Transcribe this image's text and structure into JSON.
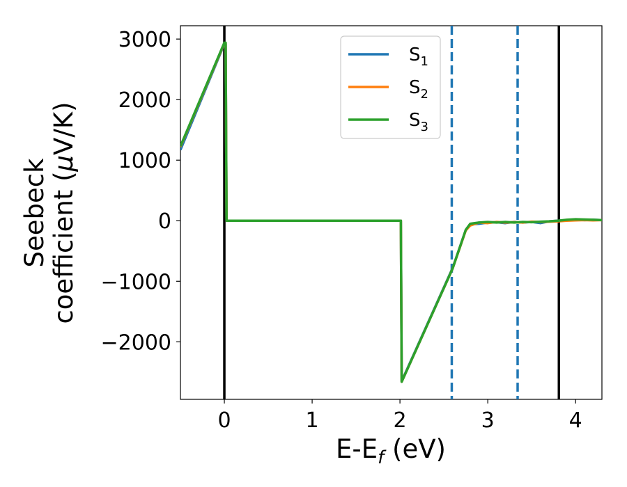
{
  "chart_data": {
    "type": "line",
    "xlabel_main": "E-E",
    "xlabel_sub": "f",
    "xlabel_unit": " (eV)",
    "ylabel_line1": "Seebeck",
    "ylabel_line2": "coefficient  (",
    "ylabel_mu": "μ",
    "ylabel_unit": "V/K)",
    "xlim": [
      -0.5,
      4.3
    ],
    "ylim": [
      -2950,
      3220
    ],
    "xticks": [
      {
        "value": 0,
        "label": "0"
      },
      {
        "value": 1,
        "label": "1"
      },
      {
        "value": 2,
        "label": "2"
      },
      {
        "value": 3,
        "label": "3"
      },
      {
        "value": 4,
        "label": "4"
      }
    ],
    "yticks": [
      {
        "value": 3000,
        "label": "3000"
      },
      {
        "value": 2000,
        "label": "2000"
      },
      {
        "value": 1000,
        "label": "1000"
      },
      {
        "value": 0,
        "label": "0"
      },
      {
        "value": -1000,
        "label": "−1000"
      },
      {
        "value": -2000,
        "label": "−2000"
      }
    ],
    "grid": false,
    "legend_position": "top-center",
    "vlines": [
      {
        "x": 0.0,
        "style": "solid",
        "color": "#000000"
      },
      {
        "x": 3.81,
        "style": "solid",
        "color": "#000000"
      },
      {
        "x": 2.59,
        "style": "dashed",
        "color": "#1f77b4"
      },
      {
        "x": 3.34,
        "style": "dashed",
        "color": "#1f77b4"
      }
    ],
    "series": [
      {
        "name": "S",
        "sub": "1",
        "color": "#1f77b4",
        "points": [
          [
            -0.5,
            1170
          ],
          [
            0.0,
            2920
          ],
          [
            0.015,
            2920
          ],
          [
            0.025,
            0
          ],
          [
            2.01,
            0
          ],
          [
            2.02,
            -2650
          ],
          [
            2.6,
            -780
          ],
          [
            2.75,
            -150
          ],
          [
            2.8,
            -60
          ],
          [
            2.9,
            -50
          ],
          [
            3.0,
            -30
          ],
          [
            3.1,
            -25
          ],
          [
            3.2,
            -40
          ],
          [
            3.3,
            -20
          ],
          [
            3.4,
            -30
          ],
          [
            3.5,
            -20
          ],
          [
            3.6,
            -40
          ],
          [
            3.7,
            -10
          ],
          [
            3.8,
            0
          ],
          [
            3.9,
            10
          ],
          [
            4.0,
            20
          ],
          [
            4.1,
            10
          ],
          [
            4.2,
            15
          ],
          [
            4.3,
            10
          ]
        ]
      },
      {
        "name": "S",
        "sub": "2",
        "color": "#ff7f0e",
        "points": [
          [
            -0.5,
            1220
          ],
          [
            0.0,
            2930
          ],
          [
            0.015,
            2930
          ],
          [
            0.025,
            0
          ],
          [
            2.01,
            0
          ],
          [
            2.02,
            -2660
          ],
          [
            2.6,
            -790
          ],
          [
            2.75,
            -160
          ],
          [
            2.8,
            -80
          ],
          [
            2.9,
            -30
          ],
          [
            3.0,
            -40
          ],
          [
            3.1,
            -20
          ],
          [
            3.2,
            -30
          ],
          [
            3.3,
            -25
          ],
          [
            3.4,
            -30
          ],
          [
            3.5,
            -15
          ],
          [
            3.6,
            -20
          ],
          [
            3.7,
            -15
          ],
          [
            3.8,
            -10
          ],
          [
            3.9,
            0
          ],
          [
            4.0,
            5
          ],
          [
            4.1,
            10
          ],
          [
            4.2,
            5
          ],
          [
            4.3,
            10
          ]
        ]
      },
      {
        "name": "S",
        "sub": "3",
        "color": "#2ca02c",
        "points": [
          [
            -0.5,
            1230
          ],
          [
            0.0,
            2940
          ],
          [
            0.015,
            2940
          ],
          [
            0.025,
            0
          ],
          [
            2.01,
            0
          ],
          [
            2.02,
            -2660
          ],
          [
            2.6,
            -790
          ],
          [
            2.75,
            -150
          ],
          [
            2.8,
            -50
          ],
          [
            2.9,
            -30
          ],
          [
            3.0,
            -20
          ],
          [
            3.1,
            -30
          ],
          [
            3.2,
            -20
          ],
          [
            3.3,
            -30
          ],
          [
            3.4,
            -20
          ],
          [
            3.5,
            -25
          ],
          [
            3.6,
            -15
          ],
          [
            3.7,
            -10
          ],
          [
            3.8,
            0
          ],
          [
            3.9,
            15
          ],
          [
            4.0,
            25
          ],
          [
            4.1,
            20
          ],
          [
            4.2,
            15
          ],
          [
            4.3,
            10
          ]
        ]
      }
    ]
  }
}
